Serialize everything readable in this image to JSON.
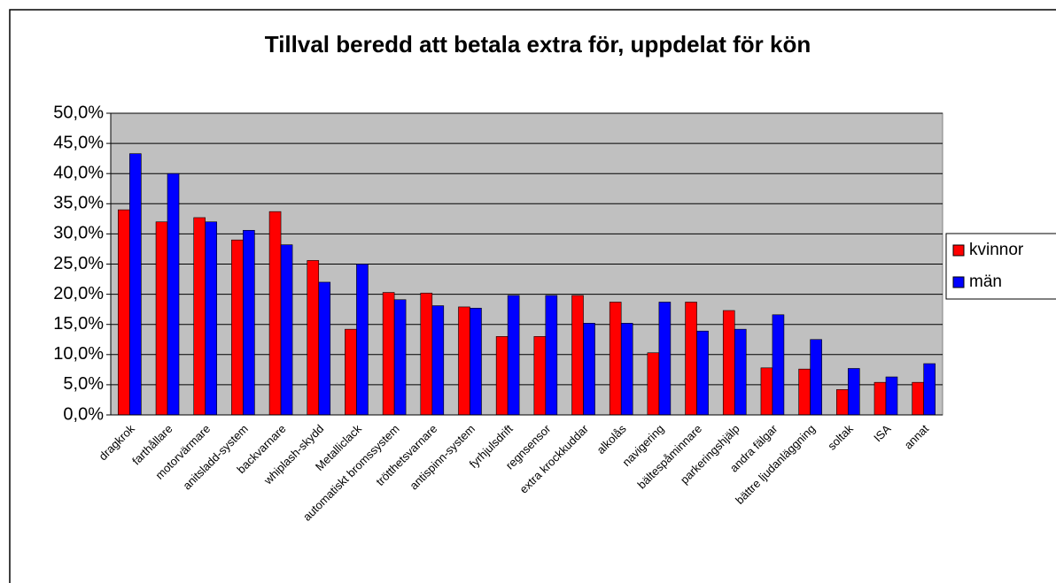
{
  "chart_data": {
    "type": "bar",
    "title": "Tillval beredd att betala extra för, uppdelat för kön",
    "categories": [
      "dragkrok",
      "farthållare",
      "motorvärmare",
      "anitsladd-system",
      "backvarnare",
      "whiplash-skydd",
      "Metalliclack",
      "automatiskt bromssystem",
      "trötthetsvarnare",
      "antispinn-system",
      "fyrhjulsdrift",
      "regnsensor",
      "extra krockkuddar",
      "alkolås",
      "navigering",
      "bältespåminnare",
      "parkeringshjälp",
      "andra fälgar",
      "bättre ljudanläggning",
      "soltak",
      "ISA",
      "annat"
    ],
    "series": [
      {
        "name": "kvinnor",
        "color": "#ff0000",
        "values": [
          34.0,
          32.0,
          32.7,
          29.0,
          33.7,
          25.6,
          14.2,
          20.3,
          20.2,
          17.9,
          13.0,
          13.0,
          19.8,
          18.7,
          10.3,
          18.7,
          17.3,
          7.8,
          7.6,
          4.2,
          5.4,
          5.4
        ]
      },
      {
        "name": "män",
        "color": "#0000ff",
        "values": [
          43.3,
          40.0,
          32.0,
          30.6,
          28.2,
          22.0,
          25.0,
          19.1,
          18.1,
          17.7,
          19.8,
          19.8,
          15.2,
          15.2,
          18.7,
          13.9,
          14.2,
          16.6,
          12.5,
          7.7,
          6.3,
          8.5
        ]
      }
    ],
    "ylim": [
      0,
      50
    ],
    "yticks": [
      {
        "value": 0,
        "label": "0,0%"
      },
      {
        "value": 5,
        "label": "5,0%"
      },
      {
        "value": 10,
        "label": "10,0%"
      },
      {
        "value": 15,
        "label": "15,0%"
      },
      {
        "value": 20,
        "label": "20,0%"
      },
      {
        "value": 25,
        "label": "25,0%"
      },
      {
        "value": 30,
        "label": "30,0%"
      },
      {
        "value": 35,
        "label": "35,0%"
      },
      {
        "value": 40,
        "label": "40,0%"
      },
      {
        "value": 45,
        "label": "45,0%"
      },
      {
        "value": 50,
        "label": "50,0%"
      }
    ],
    "grid": true,
    "legend": "right"
  }
}
